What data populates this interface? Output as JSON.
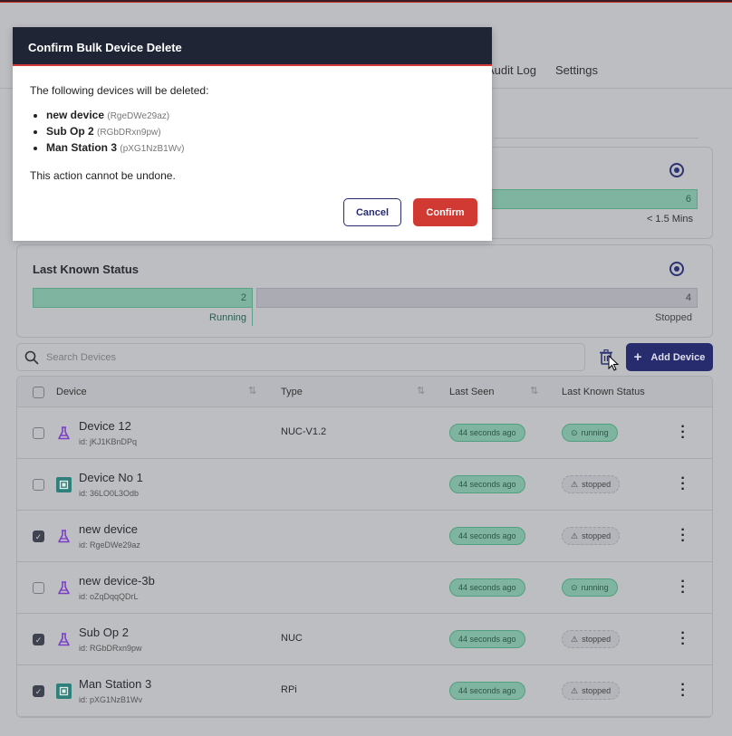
{
  "tabs": {
    "audit_log": "Audit Log",
    "settings": "Settings"
  },
  "top_card": {
    "bar_value": "6",
    "bar_label": "< 1.5 Mins"
  },
  "status_card": {
    "title": "Last Known Status",
    "running_count": "2",
    "running_label": "Running",
    "stopped_count": "4",
    "stopped_label": "Stopped"
  },
  "search": {
    "placeholder": "Search Devices"
  },
  "add_device": "Add Device",
  "table": {
    "headers": {
      "device": "Device",
      "type": "Type",
      "last_seen": "Last Seen",
      "status": "Last Known Status"
    },
    "rows": [
      {
        "name": "Device 12",
        "id": "id: jKJ1KBnDPq",
        "type": "NUC-V1.2",
        "seen": "44 seconds ago",
        "status": "running",
        "checked": false,
        "icon": "flask-icon"
      },
      {
        "name": "Device No 1",
        "id": "id: 36LO0L3Odb",
        "type": "",
        "seen": "44 seconds ago",
        "status": "stopped",
        "checked": false,
        "icon": "chip-icon"
      },
      {
        "name": "new device",
        "id": "id: RgeDWe29az",
        "type": "",
        "seen": "44 seconds ago",
        "status": "stopped",
        "checked": true,
        "icon": "flask-icon"
      },
      {
        "name": "new device-3b",
        "id": "id: oZqDqqQDrL",
        "type": "",
        "seen": "44 seconds ago",
        "status": "running",
        "checked": false,
        "icon": "flask-icon"
      },
      {
        "name": "Sub Op 2",
        "id": "id: RGbDRxn9pw",
        "type": "NUC",
        "seen": "44 seconds ago",
        "status": "stopped",
        "checked": true,
        "icon": "flask-icon"
      },
      {
        "name": "Man Station 3",
        "id": "id: pXG1NzB1Wv",
        "type": "RPi",
        "seen": "44 seconds ago",
        "status": "stopped",
        "checked": true,
        "icon": "chip-icon"
      }
    ]
  },
  "modal": {
    "title": "Confirm Bulk Device Delete",
    "intro": "The following devices will be deleted:",
    "items": [
      {
        "name": "new device",
        "id": "(RgeDWe29az)"
      },
      {
        "name": "Sub Op 2",
        "id": "(RGbDRxn9pw)"
      },
      {
        "name": "Man Station 3",
        "id": "(pXG1NzB1Wv)"
      }
    ],
    "warning": "This action cannot be undone.",
    "cancel": "Cancel",
    "confirm": "Confirm"
  },
  "colors": {
    "accent": "#262c6e",
    "danger": "#d63b3b",
    "success": "#4fa07f"
  }
}
